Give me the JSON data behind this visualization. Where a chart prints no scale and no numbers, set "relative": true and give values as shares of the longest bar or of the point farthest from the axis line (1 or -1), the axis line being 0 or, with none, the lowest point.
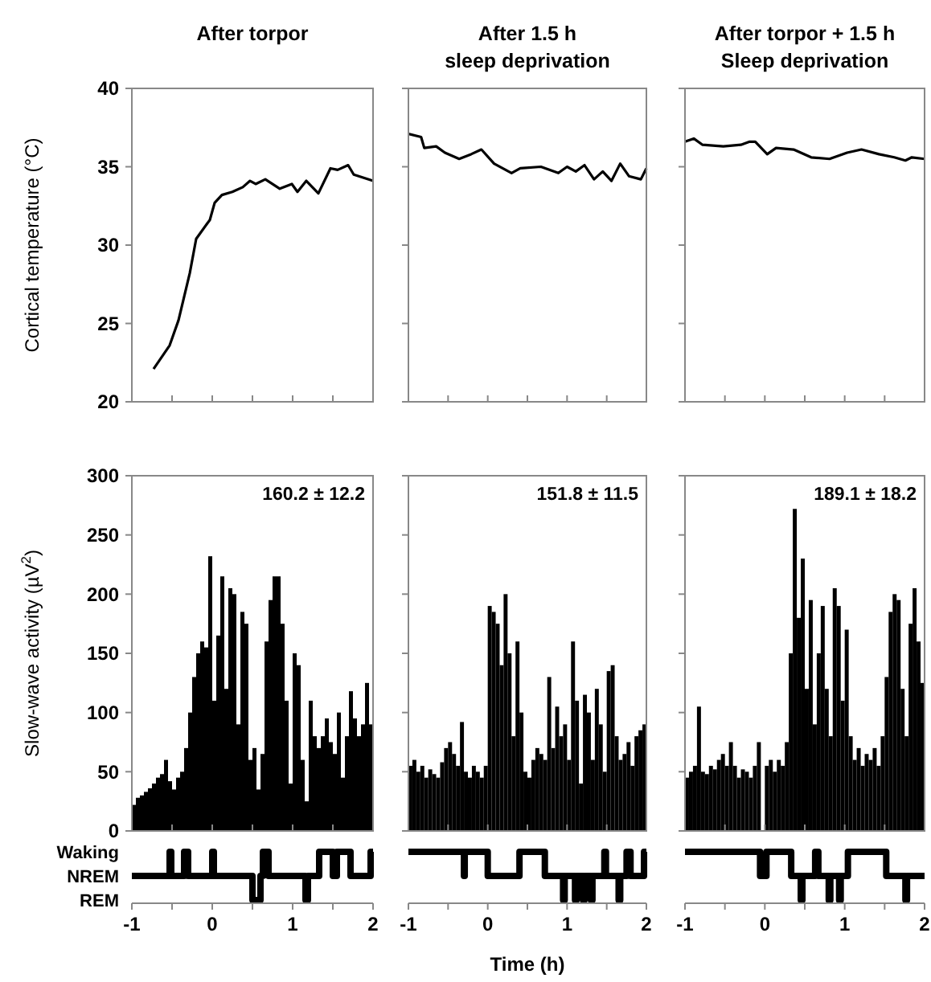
{
  "chart_data": [
    {
      "type": "line",
      "title": "After torpor",
      "ylabel": "Cortical temperature (°C)",
      "color": "#000000",
      "x": [
        -0.73,
        -0.53,
        -0.42,
        -0.28,
        -0.2,
        -0.06,
        -0.03,
        0.03,
        0.12,
        0.25,
        0.38,
        0.47,
        0.54,
        0.66,
        0.84,
        0.99,
        1.06,
        1.17,
        1.32,
        1.47,
        1.56,
        1.69,
        1.76,
        2
      ],
      "values": [
        22.1,
        23.6,
        25.2,
        28.2,
        30.4,
        31.4,
        31.6,
        32.7,
        33.2,
        33.4,
        33.7,
        34.1,
        33.9,
        34.2,
        33.6,
        33.9,
        33.4,
        34.1,
        33.3,
        34.9,
        34.8,
        35.1,
        34.5,
        34.1
      ],
      "xlim": [
        -1,
        2
      ],
      "xticks": [
        -1,
        {
          "value": -0.5,
          "label": null
        },
        0,
        {
          "value": 0.5,
          "label": null
        },
        1,
        {
          "value": 1.5,
          "label": null
        },
        2
      ],
      "ylim": [
        20,
        40
      ],
      "yticks": [
        20,
        25,
        30,
        35,
        40
      ],
      "tick_labels": "y"
    },
    {
      "type": "line",
      "title": "After 1.5 h\nsleep deprivation",
      "color": "#000000",
      "x": [
        -1,
        -0.84,
        -0.8,
        -0.65,
        -0.54,
        -0.36,
        -0.21,
        -0.08,
        0.08,
        0.3,
        0.41,
        0.67,
        0.89,
        1,
        1.11,
        1.22,
        1.34,
        1.45,
        1.56,
        1.67,
        1.78,
        1.93,
        2
      ],
      "values": [
        37.1,
        36.9,
        36.2,
        36.3,
        35.9,
        35.5,
        35.8,
        36.1,
        35.2,
        34.6,
        34.9,
        35,
        34.6,
        35,
        34.7,
        35.1,
        34.2,
        34.7,
        34.1,
        35.2,
        34.4,
        34.2,
        34.9
      ],
      "xlim": [
        -1,
        2
      ],
      "xticks": [
        -1,
        {
          "value": -0.5,
          "label": null
        },
        0,
        {
          "value": 0.5,
          "label": null
        },
        1,
        {
          "value": 1.5,
          "label": null
        },
        2
      ],
      "ylim": [
        20,
        40
      ],
      "yticks": [
        20,
        25,
        30,
        35,
        40
      ],
      "tick_labels": false
    },
    {
      "type": "line",
      "title": "After torpor + 1.5 h\nSleep deprivation",
      "color": "#000000",
      "x": [
        -1,
        -0.89,
        -0.78,
        -0.52,
        -0.3,
        -0.19,
        -0.12,
        0.03,
        0.14,
        0.36,
        0.58,
        0.81,
        1.03,
        1.21,
        1.43,
        1.62,
        1.76,
        1.84,
        2
      ],
      "values": [
        36.6,
        36.8,
        36.4,
        36.3,
        36.4,
        36.6,
        36.6,
        35.8,
        36.2,
        36.1,
        35.6,
        35.5,
        35.9,
        36.1,
        35.8,
        35.6,
        35.4,
        35.6,
        35.5
      ],
      "xlim": [
        -1,
        2
      ],
      "xticks": [
        -1,
        {
          "value": -0.5,
          "label": null
        },
        0,
        {
          "value": 0.5,
          "label": null
        },
        1,
        {
          "value": 1.5,
          "label": null
        },
        2
      ],
      "ylim": [
        20,
        40
      ],
      "yticks": [
        20,
        25,
        30,
        35,
        40
      ],
      "tick_labels": false
    },
    {
      "type": "histogram",
      "ylabel": "Slow-wave activity (µV$^{2}$)",
      "annotations": [
        "160.2 ± 12.2"
      ],
      "color": "#000000",
      "bins": [
        -1,
        -0.95,
        -0.9,
        -0.85,
        -0.8,
        -0.75,
        -0.7,
        -0.65,
        -0.6,
        -0.55,
        -0.5,
        -0.45,
        -0.4,
        -0.35,
        -0.3,
        -0.25,
        -0.2,
        -0.15,
        -0.1,
        -0.05,
        0,
        0.05,
        0.1,
        0.15,
        0.2,
        0.25,
        0.3,
        0.35,
        0.4,
        0.45,
        0.5,
        0.55,
        0.6,
        0.65,
        0.7,
        0.75,
        0.8,
        0.85,
        0.9,
        0.95,
        1,
        1.05,
        1.1,
        1.15,
        1.2,
        1.25,
        1.3,
        1.35,
        1.4,
        1.45,
        1.5,
        1.55,
        1.6,
        1.65,
        1.7,
        1.75,
        1.8,
        1.85,
        1.9,
        1.95,
        2
      ],
      "values": [
        22,
        28,
        30,
        33,
        36,
        40,
        45,
        48,
        60,
        42,
        35,
        45,
        50,
        70,
        100,
        130,
        150,
        160,
        155,
        232,
        110,
        165,
        215,
        120,
        205,
        200,
        90,
        185,
        175,
        60,
        70,
        35,
        65,
        160,
        195,
        215,
        215,
        175,
        110,
        40,
        150,
        140,
        60,
        25,
        110,
        80,
        70,
        80,
        95,
        75,
        65,
        100,
        45,
        80,
        118,
        95,
        80,
        90,
        125,
        90
      ],
      "xlim": [
        -1,
        2
      ],
      "xticks": [
        -1,
        {
          "value": -0.5,
          "label": null
        },
        0,
        {
          "value": 0.5,
          "label": null
        },
        1,
        {
          "value": 1.5,
          "label": null
        },
        2
      ],
      "ylim": [
        0,
        300
      ],
      "yticks": [
        0,
        50,
        100,
        150,
        200,
        250,
        300
      ],
      "tick_labels": "y"
    },
    {
      "type": "histogram",
      "annotations": [
        "151.8 ± 11.5"
      ],
      "color": "#000000",
      "bins": [
        -1,
        -0.95,
        -0.9,
        -0.85,
        -0.8,
        -0.75,
        -0.7,
        -0.65,
        -0.6,
        -0.55,
        -0.5,
        -0.45,
        -0.4,
        -0.35,
        -0.3,
        -0.25,
        -0.2,
        -0.15,
        -0.1,
        -0.05,
        0,
        0.05,
        0.1,
        0.15,
        0.2,
        0.25,
        0.3,
        0.35,
        0.4,
        0.45,
        0.5,
        0.55,
        0.6,
        0.65,
        0.7,
        0.75,
        0.8,
        0.85,
        0.9,
        0.95,
        1,
        1.05,
        1.1,
        1.15,
        1.2,
        1.25,
        1.3,
        1.35,
        1.4,
        1.45,
        1.5,
        1.55,
        1.6,
        1.65,
        1.7,
        1.75,
        1.8,
        1.85,
        1.9,
        1.95,
        2
      ],
      "values": [
        55,
        60,
        50,
        55,
        45,
        52,
        48,
        45,
        58,
        70,
        75,
        65,
        55,
        92,
        50,
        45,
        55,
        50,
        45,
        55,
        190,
        185,
        175,
        140,
        200,
        150,
        80,
        160,
        100,
        50,
        45,
        60,
        70,
        65,
        60,
        130,
        70,
        105,
        80,
        90,
        60,
        160,
        110,
        40,
        115,
        100,
        60,
        120,
        90,
        50,
        135,
        140,
        80,
        60,
        65,
        75,
        55,
        80,
        85,
        90
      ],
      "xlim": [
        -1,
        2
      ],
      "xticks": [
        -1,
        {
          "value": -0.5,
          "label": null
        },
        0,
        {
          "value": 0.5,
          "label": null
        },
        1,
        {
          "value": 1.5,
          "label": null
        },
        2
      ],
      "ylim": [
        0,
        300
      ],
      "yticks": [
        0,
        50,
        100,
        150,
        200,
        250,
        300
      ],
      "tick_labels": false
    },
    {
      "type": "histogram",
      "annotations": [
        "189.1 ± 18.2"
      ],
      "color": "#000000",
      "bins": [
        -1,
        -0.95,
        -0.9,
        -0.85,
        -0.8,
        -0.75,
        -0.7,
        -0.65,
        -0.6,
        -0.55,
        -0.5,
        -0.45,
        -0.4,
        -0.35,
        -0.3,
        -0.25,
        -0.2,
        -0.15,
        -0.1,
        -0.05,
        0,
        0.05,
        0.1,
        0.15,
        0.2,
        0.25,
        0.3,
        0.35,
        0.4,
        0.45,
        0.5,
        0.55,
        0.6,
        0.65,
        0.7,
        0.75,
        0.8,
        0.85,
        0.9,
        0.95,
        1,
        1.05,
        1.1,
        1.15,
        1.2,
        1.25,
        1.3,
        1.35,
        1.4,
        1.45,
        1.5,
        1.55,
        1.6,
        1.65,
        1.7,
        1.75,
        1.8,
        1.85,
        1.9,
        1.95,
        2
      ],
      "values": [
        45,
        50,
        55,
        105,
        50,
        48,
        55,
        52,
        60,
        65,
        55,
        75,
        55,
        45,
        52,
        50,
        45,
        55,
        75,
        0,
        55,
        60,
        50,
        60,
        55,
        75,
        150,
        272,
        180,
        230,
        120,
        195,
        90,
        150,
        190,
        120,
        80,
        205,
        190,
        110,
        170,
        80,
        60,
        70,
        55,
        65,
        60,
        70,
        55,
        80,
        130,
        185,
        200,
        195,
        120,
        80,
        175,
        205,
        160,
        125
      ],
      "xlim": [
        -1,
        2
      ],
      "xticks": [
        -1,
        {
          "value": -0.5,
          "label": null
        },
        0,
        {
          "value": 0.5,
          "label": null
        },
        1,
        {
          "value": 1.5,
          "label": null
        },
        2
      ],
      "ylim": [
        0,
        300
      ],
      "yticks": [
        0,
        50,
        100,
        150,
        200,
        250,
        300
      ],
      "tick_labels": false
    },
    {
      "type": "step",
      "color": "#000000",
      "x": [
        -1,
        -0.53,
        -0.51,
        -0.35,
        -0.3,
        0,
        0.02,
        0.5,
        0.6,
        0.63,
        0.7,
        1.16,
        1.19,
        1.33,
        1.5,
        1.55,
        1.72,
        1.97,
        2
      ],
      "values": [
        0.5,
        1,
        0.5,
        1,
        0.5,
        1,
        0.5,
        0,
        0.5,
        1,
        0.5,
        0,
        0.5,
        1,
        0.5,
        1,
        0.5,
        1,
        1
      ],
      "relative": true,
      "annotations": [
        "Waking",
        "NREM",
        "REM"
      ],
      "xlim": [
        -1,
        2
      ],
      "xticks": [
        -1,
        {
          "value": -0.5,
          "label": null
        },
        0,
        {
          "value": 0.5,
          "label": null
        },
        1,
        {
          "value": 1.5,
          "label": null
        },
        2
      ]
    },
    {
      "type": "step",
      "xlabel": "Time (h)",
      "color": "#000000",
      "x": [
        -1,
        -0.3,
        -0.29,
        0,
        0.4,
        0.72,
        0.95,
        0.97,
        1.1,
        1.12,
        1.2,
        1.22,
        1.3,
        1.32,
        1.47,
        1.49,
        1.65,
        1.67,
        1.75,
        1.8,
        1.97,
        2
      ],
      "values": [
        1,
        0.5,
        1,
        0.5,
        1,
        0.5,
        0,
        0.5,
        0,
        0.5,
        0,
        0.5,
        0,
        0.5,
        1,
        0.5,
        0,
        0.5,
        1,
        0.5,
        1,
        1
      ],
      "relative": true,
      "xlim": [
        -1,
        2
      ],
      "xticks": [
        -1,
        {
          "value": -0.5,
          "label": null
        },
        0,
        {
          "value": 0.5,
          "label": null
        },
        1,
        {
          "value": 1.5,
          "label": null
        },
        2
      ]
    },
    {
      "type": "step",
      "color": "#000000",
      "x": [
        -1,
        -0.06,
        0.02,
        0.33,
        0.45,
        0.47,
        0.63,
        0.67,
        0.8,
        0.82,
        0.93,
        0.95,
        1.04,
        1.52,
        1.76,
        1.78,
        2
      ],
      "values": [
        1,
        0.5,
        1,
        0.5,
        0,
        0.5,
        1,
        0.5,
        0,
        0.5,
        0,
        0.5,
        1,
        0.5,
        0,
        0.5,
        0.5
      ],
      "relative": true,
      "xlim": [
        -1,
        2
      ],
      "xticks": [
        -1,
        {
          "value": -0.5,
          "label": null
        },
        0,
        {
          "value": 0.5,
          "label": null
        },
        1,
        {
          "value": 1.5,
          "label": null
        },
        2
      ]
    }
  ]
}
